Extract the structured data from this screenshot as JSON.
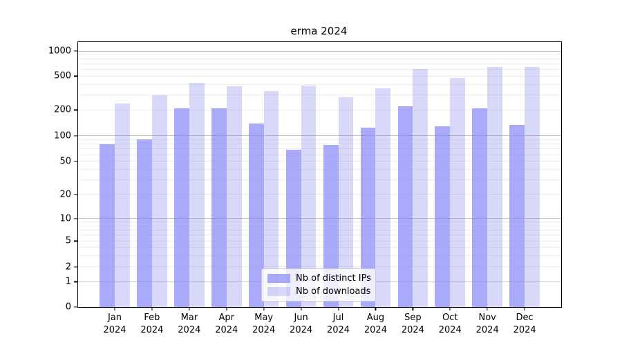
{
  "title": "erma 2024",
  "chart_data": {
    "type": "bar",
    "title": "erma 2024",
    "categories": [
      "Jan\n2024",
      "Feb\n2024",
      "Mar\n2024",
      "Apr\n2024",
      "May\n2024",
      "Jun\n2024",
      "Jul\n2024",
      "Aug\n2024",
      "Sep\n2024",
      "Oct\n2024",
      "Nov\n2024",
      "Dec\n2024"
    ],
    "series": [
      {
        "name": "Nb of distinct IPs",
        "color": "rgba(134,134,248,0.7)",
        "values": [
          80,
          91,
          210,
          211,
          139,
          68,
          78,
          123,
          220,
          128,
          209,
          133
        ]
      },
      {
        "name": "Nb of downloads",
        "color": "rgba(125,125,232,0.3)",
        "values": [
          240,
          300,
          415,
          380,
          333,
          388,
          285,
          363,
          605,
          475,
          645,
          645
        ]
      }
    ],
    "xlabel": "",
    "ylabel": "",
    "y_axis": {
      "scale": "symlog",
      "ticks": [
        0,
        1,
        2,
        5,
        10,
        20,
        50,
        100,
        200,
        500,
        1000
      ],
      "major_gridlines": [
        1,
        10,
        100,
        1000
      ],
      "minor_gridlines": [
        2,
        3,
        4,
        5,
        6,
        7,
        8,
        9,
        20,
        30,
        40,
        50,
        60,
        70,
        80,
        90,
        200,
        300,
        400,
        500,
        600,
        700,
        800,
        900
      ],
      "ylim": [
        0,
        1100
      ]
    },
    "y_scale_anchors": [
      [
        0,
        0
      ],
      [
        1,
        0.0951
      ],
      [
        2,
        0.1523
      ],
      [
        5,
        0.2487
      ],
      [
        10,
        0.3346
      ],
      [
        20,
        0.4245
      ],
      [
        50,
        0.5495
      ],
      [
        100,
        0.6471
      ],
      [
        200,
        0.7435
      ],
      [
        500,
        0.8711
      ],
      [
        1000,
        0.9661
      ]
    ],
    "legend": {
      "position": "lower center",
      "items": [
        "Nb of distinct IPs",
        "Nb of downloads"
      ]
    },
    "grid": true
  }
}
